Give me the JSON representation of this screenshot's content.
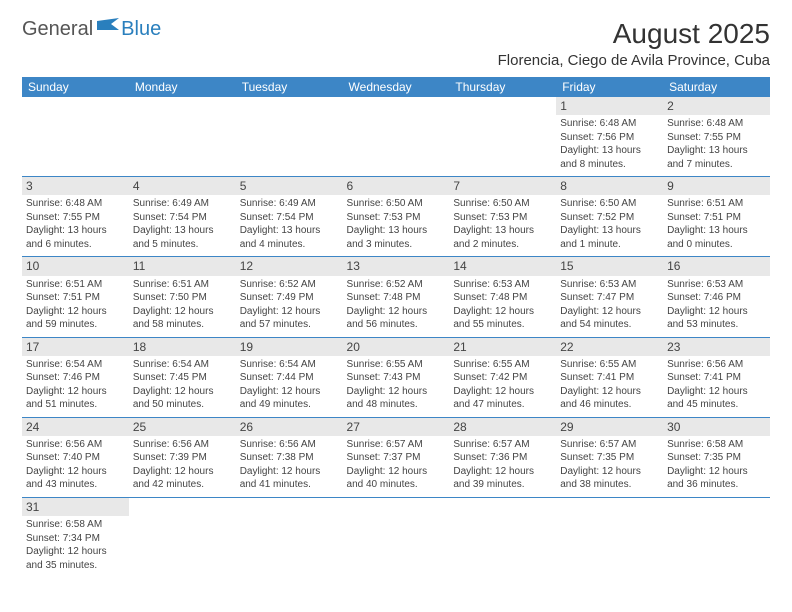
{
  "logo": {
    "part1": "General",
    "part2": "Blue"
  },
  "title": "August 2025",
  "location": "Florencia, Ciego de Avila Province, Cuba",
  "colors": {
    "header_bg": "#3d86c6",
    "header_fg": "#ffffff",
    "daynum_bg": "#e8e8e8",
    "border": "#3d86c6",
    "logo_blue": "#2a7fbd"
  },
  "day_headers": [
    "Sunday",
    "Monday",
    "Tuesday",
    "Wednesday",
    "Thursday",
    "Friday",
    "Saturday"
  ],
  "weeks": [
    [
      null,
      null,
      null,
      null,
      null,
      {
        "n": "1",
        "sr": "Sunrise: 6:48 AM",
        "ss": "Sunset: 7:56 PM",
        "dl": "Daylight: 13 hours and 8 minutes."
      },
      {
        "n": "2",
        "sr": "Sunrise: 6:48 AM",
        "ss": "Sunset: 7:55 PM",
        "dl": "Daylight: 13 hours and 7 minutes."
      }
    ],
    [
      {
        "n": "3",
        "sr": "Sunrise: 6:48 AM",
        "ss": "Sunset: 7:55 PM",
        "dl": "Daylight: 13 hours and 6 minutes."
      },
      {
        "n": "4",
        "sr": "Sunrise: 6:49 AM",
        "ss": "Sunset: 7:54 PM",
        "dl": "Daylight: 13 hours and 5 minutes."
      },
      {
        "n": "5",
        "sr": "Sunrise: 6:49 AM",
        "ss": "Sunset: 7:54 PM",
        "dl": "Daylight: 13 hours and 4 minutes."
      },
      {
        "n": "6",
        "sr": "Sunrise: 6:50 AM",
        "ss": "Sunset: 7:53 PM",
        "dl": "Daylight: 13 hours and 3 minutes."
      },
      {
        "n": "7",
        "sr": "Sunrise: 6:50 AM",
        "ss": "Sunset: 7:53 PM",
        "dl": "Daylight: 13 hours and 2 minutes."
      },
      {
        "n": "8",
        "sr": "Sunrise: 6:50 AM",
        "ss": "Sunset: 7:52 PM",
        "dl": "Daylight: 13 hours and 1 minute."
      },
      {
        "n": "9",
        "sr": "Sunrise: 6:51 AM",
        "ss": "Sunset: 7:51 PM",
        "dl": "Daylight: 13 hours and 0 minutes."
      }
    ],
    [
      {
        "n": "10",
        "sr": "Sunrise: 6:51 AM",
        "ss": "Sunset: 7:51 PM",
        "dl": "Daylight: 12 hours and 59 minutes."
      },
      {
        "n": "11",
        "sr": "Sunrise: 6:51 AM",
        "ss": "Sunset: 7:50 PM",
        "dl": "Daylight: 12 hours and 58 minutes."
      },
      {
        "n": "12",
        "sr": "Sunrise: 6:52 AM",
        "ss": "Sunset: 7:49 PM",
        "dl": "Daylight: 12 hours and 57 minutes."
      },
      {
        "n": "13",
        "sr": "Sunrise: 6:52 AM",
        "ss": "Sunset: 7:48 PM",
        "dl": "Daylight: 12 hours and 56 minutes."
      },
      {
        "n": "14",
        "sr": "Sunrise: 6:53 AM",
        "ss": "Sunset: 7:48 PM",
        "dl": "Daylight: 12 hours and 55 minutes."
      },
      {
        "n": "15",
        "sr": "Sunrise: 6:53 AM",
        "ss": "Sunset: 7:47 PM",
        "dl": "Daylight: 12 hours and 54 minutes."
      },
      {
        "n": "16",
        "sr": "Sunrise: 6:53 AM",
        "ss": "Sunset: 7:46 PM",
        "dl": "Daylight: 12 hours and 53 minutes."
      }
    ],
    [
      {
        "n": "17",
        "sr": "Sunrise: 6:54 AM",
        "ss": "Sunset: 7:46 PM",
        "dl": "Daylight: 12 hours and 51 minutes."
      },
      {
        "n": "18",
        "sr": "Sunrise: 6:54 AM",
        "ss": "Sunset: 7:45 PM",
        "dl": "Daylight: 12 hours and 50 minutes."
      },
      {
        "n": "19",
        "sr": "Sunrise: 6:54 AM",
        "ss": "Sunset: 7:44 PM",
        "dl": "Daylight: 12 hours and 49 minutes."
      },
      {
        "n": "20",
        "sr": "Sunrise: 6:55 AM",
        "ss": "Sunset: 7:43 PM",
        "dl": "Daylight: 12 hours and 48 minutes."
      },
      {
        "n": "21",
        "sr": "Sunrise: 6:55 AM",
        "ss": "Sunset: 7:42 PM",
        "dl": "Daylight: 12 hours and 47 minutes."
      },
      {
        "n": "22",
        "sr": "Sunrise: 6:55 AM",
        "ss": "Sunset: 7:41 PM",
        "dl": "Daylight: 12 hours and 46 minutes."
      },
      {
        "n": "23",
        "sr": "Sunrise: 6:56 AM",
        "ss": "Sunset: 7:41 PM",
        "dl": "Daylight: 12 hours and 45 minutes."
      }
    ],
    [
      {
        "n": "24",
        "sr": "Sunrise: 6:56 AM",
        "ss": "Sunset: 7:40 PM",
        "dl": "Daylight: 12 hours and 43 minutes."
      },
      {
        "n": "25",
        "sr": "Sunrise: 6:56 AM",
        "ss": "Sunset: 7:39 PM",
        "dl": "Daylight: 12 hours and 42 minutes."
      },
      {
        "n": "26",
        "sr": "Sunrise: 6:56 AM",
        "ss": "Sunset: 7:38 PM",
        "dl": "Daylight: 12 hours and 41 minutes."
      },
      {
        "n": "27",
        "sr": "Sunrise: 6:57 AM",
        "ss": "Sunset: 7:37 PM",
        "dl": "Daylight: 12 hours and 40 minutes."
      },
      {
        "n": "28",
        "sr": "Sunrise: 6:57 AM",
        "ss": "Sunset: 7:36 PM",
        "dl": "Daylight: 12 hours and 39 minutes."
      },
      {
        "n": "29",
        "sr": "Sunrise: 6:57 AM",
        "ss": "Sunset: 7:35 PM",
        "dl": "Daylight: 12 hours and 38 minutes."
      },
      {
        "n": "30",
        "sr": "Sunrise: 6:58 AM",
        "ss": "Sunset: 7:35 PM",
        "dl": "Daylight: 12 hours and 36 minutes."
      }
    ],
    [
      {
        "n": "31",
        "sr": "Sunrise: 6:58 AM",
        "ss": "Sunset: 7:34 PM",
        "dl": "Daylight: 12 hours and 35 minutes."
      },
      null,
      null,
      null,
      null,
      null,
      null
    ]
  ]
}
